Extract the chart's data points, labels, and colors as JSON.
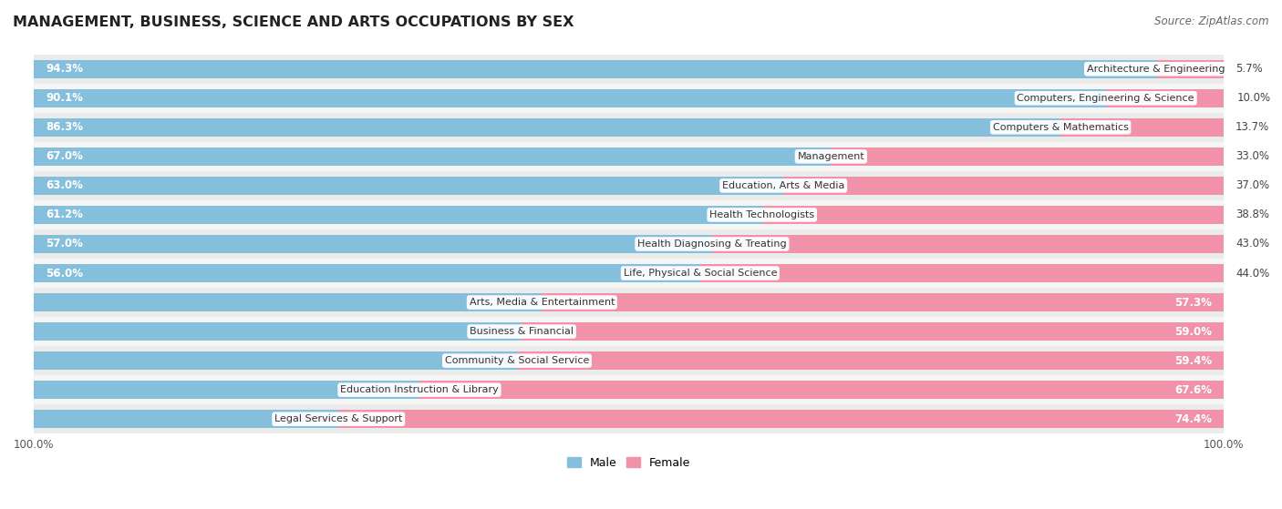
{
  "title": "MANAGEMENT, BUSINESS, SCIENCE AND ARTS OCCUPATIONS BY SEX",
  "source": "Source: ZipAtlas.com",
  "categories": [
    "Architecture & Engineering",
    "Computers, Engineering & Science",
    "Computers & Mathematics",
    "Management",
    "Education, Arts & Media",
    "Health Technologists",
    "Health Diagnosing & Treating",
    "Life, Physical & Social Science",
    "Arts, Media & Entertainment",
    "Business & Financial",
    "Community & Social Service",
    "Education Instruction & Library",
    "Legal Services & Support"
  ],
  "male": [
    94.3,
    90.1,
    86.3,
    67.0,
    63.0,
    61.2,
    57.0,
    56.0,
    42.7,
    41.0,
    40.6,
    32.4,
    25.6
  ],
  "female": [
    5.7,
    10.0,
    13.7,
    33.0,
    37.0,
    38.8,
    43.0,
    44.0,
    57.3,
    59.0,
    59.4,
    67.6,
    74.4
  ],
  "male_color": "#85BFDC",
  "female_color": "#F093A8",
  "row_colors": [
    "#EBEBEB",
    "#F5F5F5"
  ],
  "bar_height": 0.62,
  "title_fontsize": 11.5,
  "bar_fontsize": 8.5,
  "cat_fontsize": 8.0,
  "axis_fontsize": 8.5,
  "legend_fontsize": 9,
  "source_fontsize": 8.5
}
